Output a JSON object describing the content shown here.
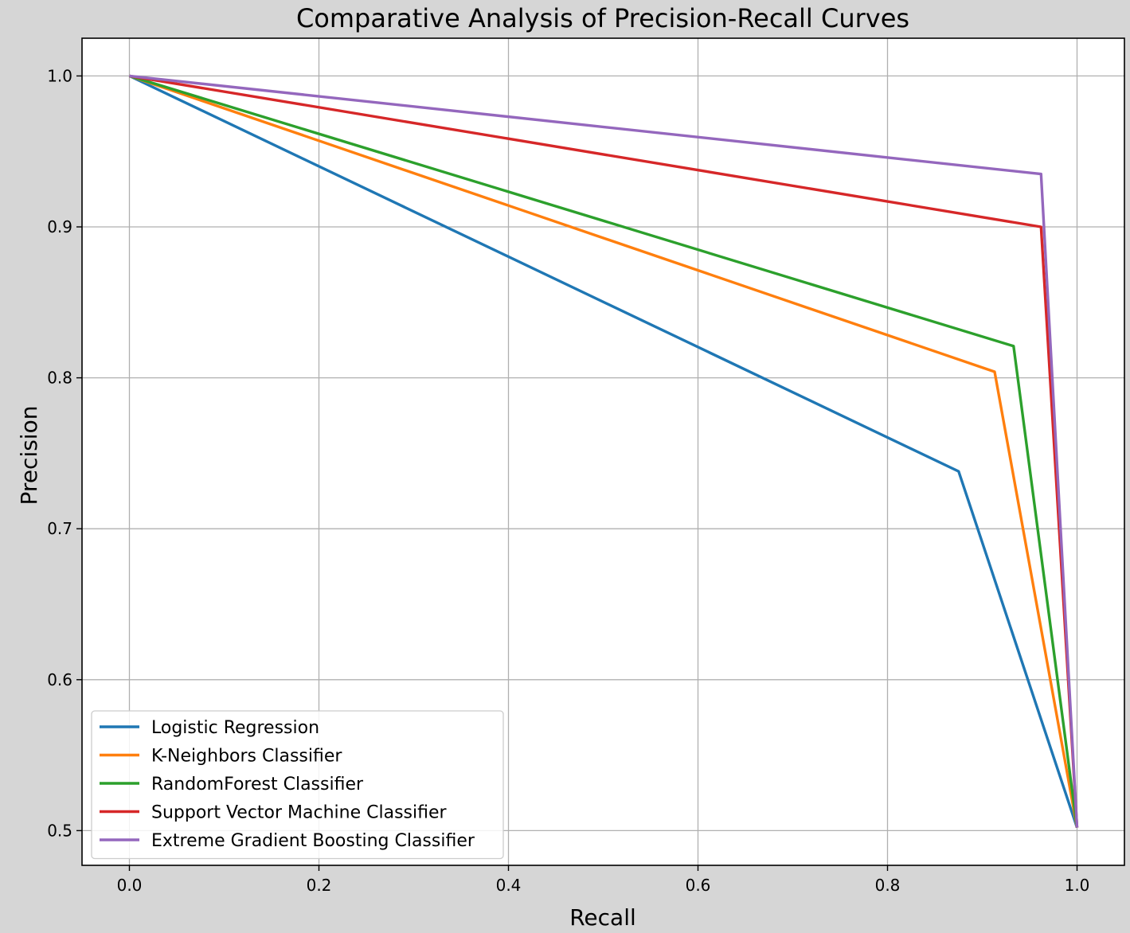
{
  "chart_data": {
    "type": "line",
    "title": "Comparative Analysis of Precision-Recall Curves",
    "xlabel": "Recall",
    "ylabel": "Precision",
    "xlim": [
      -0.05,
      1.05
    ],
    "ylim": [
      0.477,
      1.025
    ],
    "xticks": [
      0.0,
      0.2,
      0.4,
      0.6,
      0.8,
      1.0
    ],
    "xtick_labels": [
      "0.0",
      "0.2",
      "0.4",
      "0.6",
      "0.8",
      "1.0"
    ],
    "yticks": [
      0.5,
      0.6,
      0.7,
      0.8,
      0.9,
      1.0
    ],
    "ytick_labels": [
      "0.5",
      "0.6",
      "0.7",
      "0.8",
      "0.9",
      "1.0"
    ],
    "grid": true,
    "legend_position": "lower-left",
    "series": [
      {
        "name": "Logistic Regression",
        "color": "#1f77b4",
        "x": [
          0.0,
          0.875,
          1.0
        ],
        "y": [
          1.0,
          0.738,
          0.502
        ]
      },
      {
        "name": "K-Neighbors Classifier",
        "color": "#ff7f0e",
        "x": [
          0.0,
          0.913,
          1.0
        ],
        "y": [
          1.0,
          0.804,
          0.502
        ]
      },
      {
        "name": "RandomForest Classifier",
        "color": "#2ca02c",
        "x": [
          0.0,
          0.933,
          1.0
        ],
        "y": [
          1.0,
          0.821,
          0.502
        ]
      },
      {
        "name": "Support Vector Machine Classifier",
        "color": "#d62728",
        "x": [
          0.0,
          0.962,
          1.0
        ],
        "y": [
          1.0,
          0.9,
          0.502
        ]
      },
      {
        "name": "Extreme Gradient Boosting Classifier",
        "color": "#9467bd",
        "x": [
          0.0,
          0.962,
          1.0
        ],
        "y": [
          1.0,
          0.935,
          0.502
        ]
      }
    ]
  }
}
